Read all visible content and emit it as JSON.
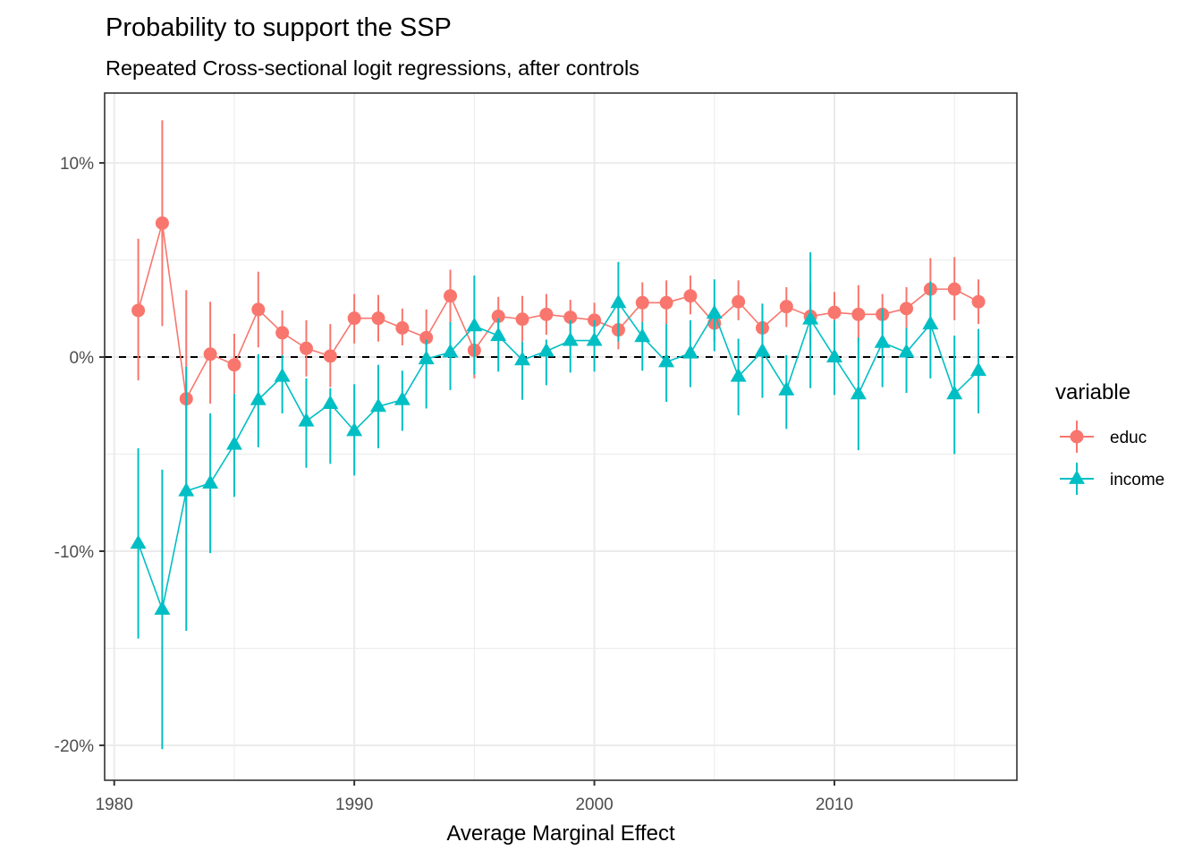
{
  "chart_data": {
    "type": "line",
    "title": "Probability to support the SSP",
    "subtitle": "Repeated Cross-sectional logit regressions, after controls",
    "xlabel": "Average Marginal Effect",
    "ylabel": "",
    "xlim": [
      1979.6,
      2017.6
    ],
    "ylim": [
      -21.8,
      13.6
    ],
    "x_ticks": [
      1980,
      1990,
      2000,
      2010
    ],
    "x_tick_labels": [
      "1980",
      "1990",
      "2000",
      "2010"
    ],
    "y_ticks": [
      -20,
      -10,
      0,
      10
    ],
    "y_tick_labels": [
      "-20%",
      "-10%",
      "0%",
      "10%"
    ],
    "y_unit": "percent",
    "grid": true,
    "reference_line": {
      "y": 0,
      "style": "dashed",
      "color": "#000000"
    },
    "legend": {
      "title": "variable",
      "position": "right"
    },
    "x": [
      1981,
      1982,
      1983,
      1984,
      1985,
      1986,
      1987,
      1988,
      1989,
      1990,
      1991,
      1992,
      1993,
      1994,
      1995,
      1996,
      1997,
      1998,
      1999,
      2000,
      2001,
      2002,
      2003,
      2004,
      2005,
      2006,
      2007,
      2008,
      2009,
      2010,
      2011,
      2012,
      2013,
      2014,
      2015,
      2016
    ],
    "series": [
      {
        "name": "educ",
        "color": "#F8766D",
        "marker": "circle",
        "values": [
          2.4,
          6.9,
          -2.15,
          0.15,
          -0.4,
          2.45,
          1.25,
          0.45,
          0.05,
          2.0,
          2.0,
          1.5,
          1.0,
          3.15,
          0.35,
          2.1,
          1.95,
          2.2,
          2.05,
          1.9,
          1.4,
          2.8,
          2.8,
          3.15,
          1.75,
          2.85,
          1.5,
          2.6,
          2.1,
          2.3,
          2.2,
          2.2,
          2.5,
          3.5,
          3.5,
          2.85
        ],
        "lower": [
          -1.2,
          1.6,
          -7.7,
          -2.4,
          -1.9,
          0.5,
          0.1,
          -1.0,
          -1.55,
          0.7,
          0.8,
          0.6,
          -0.3,
          1.8,
          -1.1,
          1.2,
          0.8,
          1.15,
          1.0,
          1.0,
          0.4,
          1.8,
          1.7,
          2.2,
          0.8,
          1.9,
          0.4,
          1.55,
          0.4,
          1.25,
          0.75,
          1.2,
          1.5,
          1.9,
          1.9,
          1.7
        ],
        "upper": [
          6.1,
          12.2,
          3.45,
          2.85,
          1.2,
          4.4,
          2.4,
          1.9,
          1.7,
          3.25,
          3.2,
          2.5,
          2.45,
          4.5,
          1.6,
          3.1,
          3.15,
          3.25,
          2.95,
          2.8,
          2.4,
          3.85,
          3.95,
          4.2,
          2.7,
          3.95,
          2.75,
          3.6,
          3.8,
          3.35,
          3.7,
          3.25,
          3.6,
          5.1,
          5.15,
          4.0
        ]
      },
      {
        "name": "income",
        "color": "#00BFC4",
        "marker": "triangle",
        "values": [
          -9.6,
          -13.0,
          -6.9,
          -6.5,
          -4.5,
          -2.2,
          -1.0,
          -3.3,
          -2.4,
          -3.8,
          -2.55,
          -2.2,
          -0.1,
          0.25,
          1.6,
          1.1,
          -0.15,
          0.3,
          0.85,
          0.85,
          2.8,
          1.05,
          -0.25,
          0.2,
          2.25,
          -1.0,
          0.3,
          -1.7,
          1.95,
          0.0,
          -1.9,
          0.75,
          0.25,
          1.7,
          -1.9,
          -0.7
        ],
        "lower": [
          -14.5,
          -20.2,
          -14.1,
          -10.1,
          -7.2,
          -4.65,
          -2.9,
          -5.7,
          -5.5,
          -6.1,
          -4.7,
          -3.8,
          -2.65,
          -1.7,
          -0.9,
          -0.75,
          -2.2,
          -1.45,
          -0.8,
          -0.75,
          0.8,
          -0.7,
          -2.3,
          -1.55,
          0.3,
          -3.0,
          -2.1,
          -3.7,
          -1.6,
          -1.95,
          -4.8,
          -1.55,
          -1.85,
          -1.1,
          -5.0,
          -2.9
        ],
        "upper": [
          -4.7,
          -5.8,
          -0.5,
          -2.9,
          -1.9,
          0.15,
          0.1,
          -1.1,
          -1.6,
          -1.4,
          -0.4,
          -0.7,
          0.9,
          1.8,
          4.2,
          2.0,
          0.8,
          0.9,
          1.9,
          1.9,
          4.9,
          1.8,
          1.7,
          1.9,
          4.0,
          0.95,
          2.75,
          0.1,
          5.4,
          1.9,
          1.0,
          2.5,
          1.5,
          3.9,
          1.1,
          1.45
        ]
      }
    ]
  }
}
